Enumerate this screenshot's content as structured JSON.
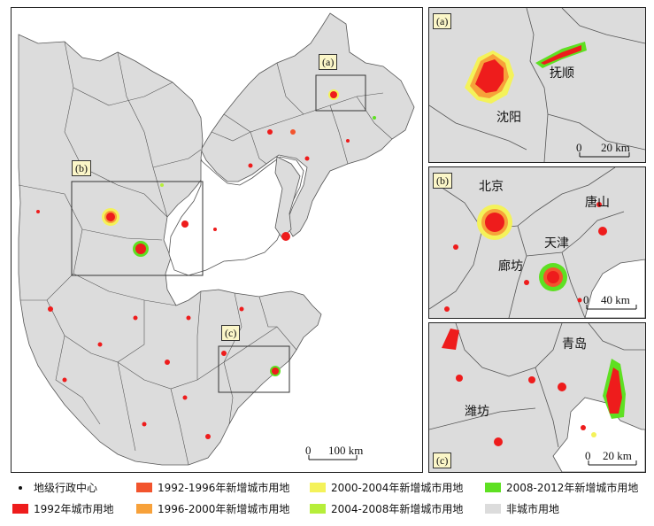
{
  "panels": {
    "main": {
      "scale": {
        "zero": "0",
        "value": "100 km"
      }
    },
    "a": {
      "tag": "(a)",
      "labels": [
        "抚顺",
        "沈阳"
      ],
      "scale": {
        "zero": "0",
        "value": "20 km"
      }
    },
    "b": {
      "tag": "(b)",
      "labels": [
        "北京",
        "唐山",
        "天津",
        "廊坊"
      ],
      "scale": {
        "zero": "0",
        "value": "40 km"
      }
    },
    "c": {
      "tag": "(c)",
      "labels": [
        "青岛",
        "潍坊"
      ],
      "scale": {
        "zero": "0",
        "value": "20 km"
      }
    }
  },
  "main_tags": [
    "(a)",
    "(b)",
    "(c)"
  ],
  "legend": [
    {
      "label": "地级行政中心",
      "type": "dot",
      "color": "#111111"
    },
    {
      "label": "1992-1996年新增城市用地",
      "type": "swatch",
      "color": "#f2542d"
    },
    {
      "label": "2000-2004年新增城市用地",
      "type": "swatch",
      "color": "#f4f25a"
    },
    {
      "label": "2008-2012年新增城市用地",
      "type": "swatch",
      "color": "#5ee022"
    },
    {
      "label": "1992年城市用地",
      "type": "swatch",
      "color": "#ee1c1c"
    },
    {
      "label": "1996-2000年新增城市用地",
      "type": "swatch",
      "color": "#f7a13a"
    },
    {
      "label": "2004-2008年新增城市用地",
      "type": "swatch",
      "color": "#b6ee3a"
    },
    {
      "label": "非城市用地",
      "type": "swatch",
      "color": "#dcdcdc"
    }
  ]
}
